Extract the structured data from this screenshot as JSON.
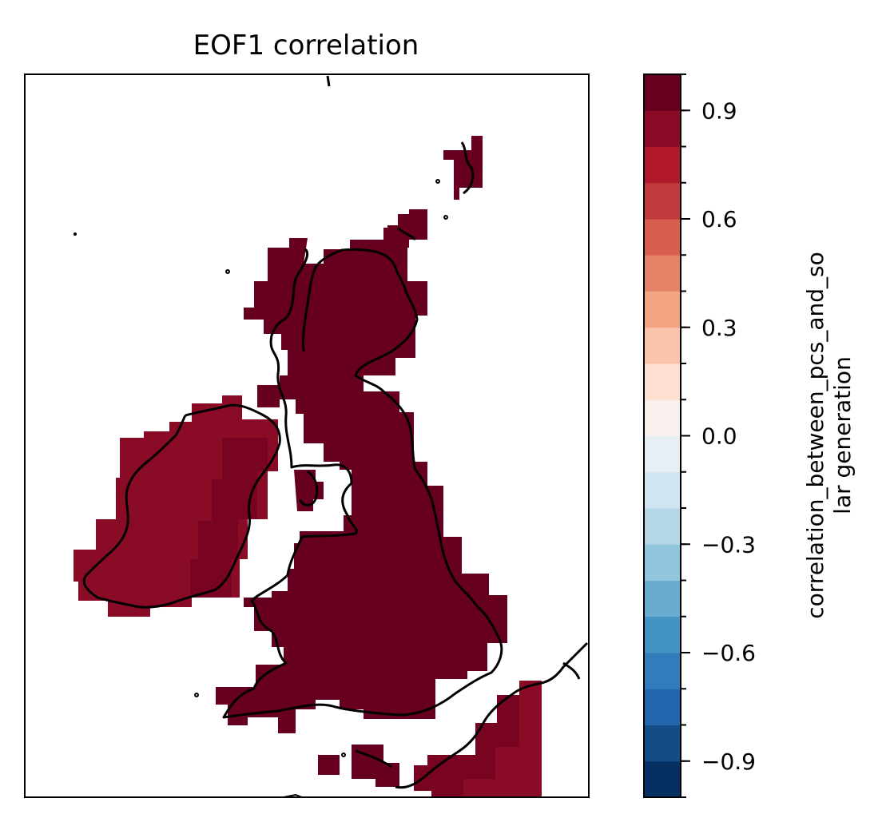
{
  "title": "EOF1 correlation",
  "colorbar": {
    "label_line1": "correlation_between_pcs_and_so",
    "label_line2": "lar generation",
    "vmin": -1.0,
    "vmax": 1.0,
    "levels": 20,
    "tick_values": [
      0.9,
      0.6,
      0.3,
      0.0,
      -0.3,
      -0.6,
      -0.9
    ],
    "tick_labels": [
      "0.9",
      "0.6",
      "0.3",
      "0.0",
      "−0.3",
      "−0.6",
      "−0.9"
    ],
    "colormap": "RdBu_r",
    "colors": [
      "#053061",
      "#134c87",
      "#2166ac",
      "#327cbb",
      "#4393c3",
      "#6aacd0",
      "#92c5de",
      "#b4d7e8",
      "#d1e5f0",
      "#e6eff4",
      "#f7f0ec",
      "#fde0d0",
      "#f9c4a9",
      "#f4a582",
      "#e58267",
      "#d6604d",
      "#c13b3d",
      "#b2182b",
      "#8a0b25",
      "#67001f"
    ]
  },
  "map": {
    "region": "British Isles",
    "land_color_britain": "#67001f",
    "land_color_ireland": "#8a0b25",
    "coastline_color": "#000000"
  }
}
